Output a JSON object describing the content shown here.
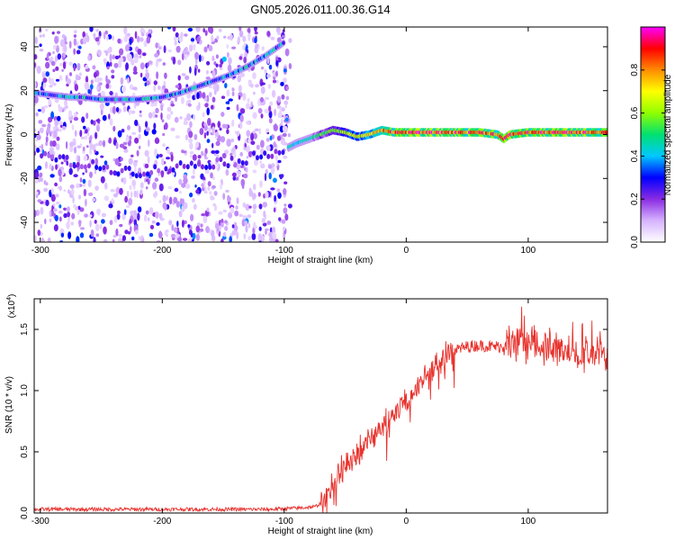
{
  "figure_title": "GN05.2026.011.00.36.G14",
  "chart_data": [
    {
      "type": "heatmap",
      "title": "",
      "xlabel": "Height of straight line (km)",
      "ylabel": "Frequency (Hz)",
      "xlim": [
        -305,
        165
      ],
      "ylim": [
        -49,
        49
      ],
      "xticks": [
        -300,
        -200,
        -100,
        0,
        100
      ],
      "yticks": [
        -40,
        -20,
        0,
        20,
        40
      ],
      "colorbar": {
        "label": "Normalized spectral amplitude",
        "range": [
          0,
          1
        ],
        "ticks": [
          "0.0",
          "0.2",
          "0.4",
          "0.6",
          "0.8"
        ],
        "colors": [
          "#ffffff",
          "#d6b3ff",
          "#8a2be2",
          "#0000ff",
          "#00c8ff",
          "#00e070",
          "#8fff00",
          "#ffff00",
          "#ff8c00",
          "#ff0000",
          "#ff00ff"
        ]
      },
      "trace": {
        "x": [
          -305,
          -290,
          -275,
          -265,
          -250,
          -235,
          -220,
          -200,
          -185,
          -170,
          -160,
          -145,
          -130,
          -115,
          -105,
          -100,
          -97,
          -90,
          -80,
          -70,
          -60,
          -50,
          -40,
          -30,
          -20,
          -10,
          0,
          20,
          40,
          60,
          75,
          80,
          85,
          100,
          120,
          140,
          165
        ],
        "y": [
          19,
          18,
          17,
          17,
          16,
          16,
          16,
          17,
          19,
          22,
          24,
          27,
          31,
          36,
          40,
          42,
          -6,
          -4,
          -2,
          0,
          2,
          1,
          -1,
          0,
          2,
          1,
          1,
          1,
          1,
          1,
          0,
          -2,
          0,
          1,
          1,
          1,
          1
        ]
      },
      "secondary_trace": {
        "x": [
          -305,
          -280,
          -250,
          -220,
          -200,
          -180,
          -160,
          -140,
          -120,
          -100
        ],
        "y": [
          -8,
          -12,
          -15,
          -17,
          -16,
          -14,
          -13,
          -12,
          -10,
          -6
        ]
      }
    },
    {
      "type": "line",
      "title": "",
      "xlabel": "Height of straight line (km)",
      "ylabel": "SNR (10 * v/v)",
      "scale_label": "(x10",
      "scale_exponent": "4",
      "xlim": [
        -305,
        165
      ],
      "ylim": [
        0,
        1.75
      ],
      "xticks": [
        -300,
        -200,
        -100,
        0,
        100
      ],
      "yticks": [
        "0.0",
        "0.5",
        "1.0",
        "1.5"
      ],
      "series": [
        {
          "color": "#e8322d",
          "x": [
            -305,
            -280,
            -260,
            -240,
            -200,
            -150,
            -110,
            -90,
            -75,
            -70,
            -65,
            -60,
            -55,
            -50,
            -40,
            -30,
            -20,
            -10,
            0,
            10,
            20,
            30,
            40,
            50,
            60,
            70,
            80,
            90,
            100,
            110,
            120,
            130,
            140,
            150,
            165
          ],
          "y": [
            0.03,
            0.03,
            0.03,
            0.03,
            0.03,
            0.03,
            0.03,
            0.04,
            0.05,
            0.08,
            0.15,
            0.22,
            0.3,
            0.38,
            0.5,
            0.6,
            0.7,
            0.8,
            0.92,
            1.05,
            1.17,
            1.28,
            1.33,
            1.36,
            1.37,
            1.36,
            1.36,
            1.35,
            1.35,
            1.36,
            1.35,
            1.34,
            1.3,
            1.3,
            1.28
          ]
        }
      ]
    }
  ]
}
